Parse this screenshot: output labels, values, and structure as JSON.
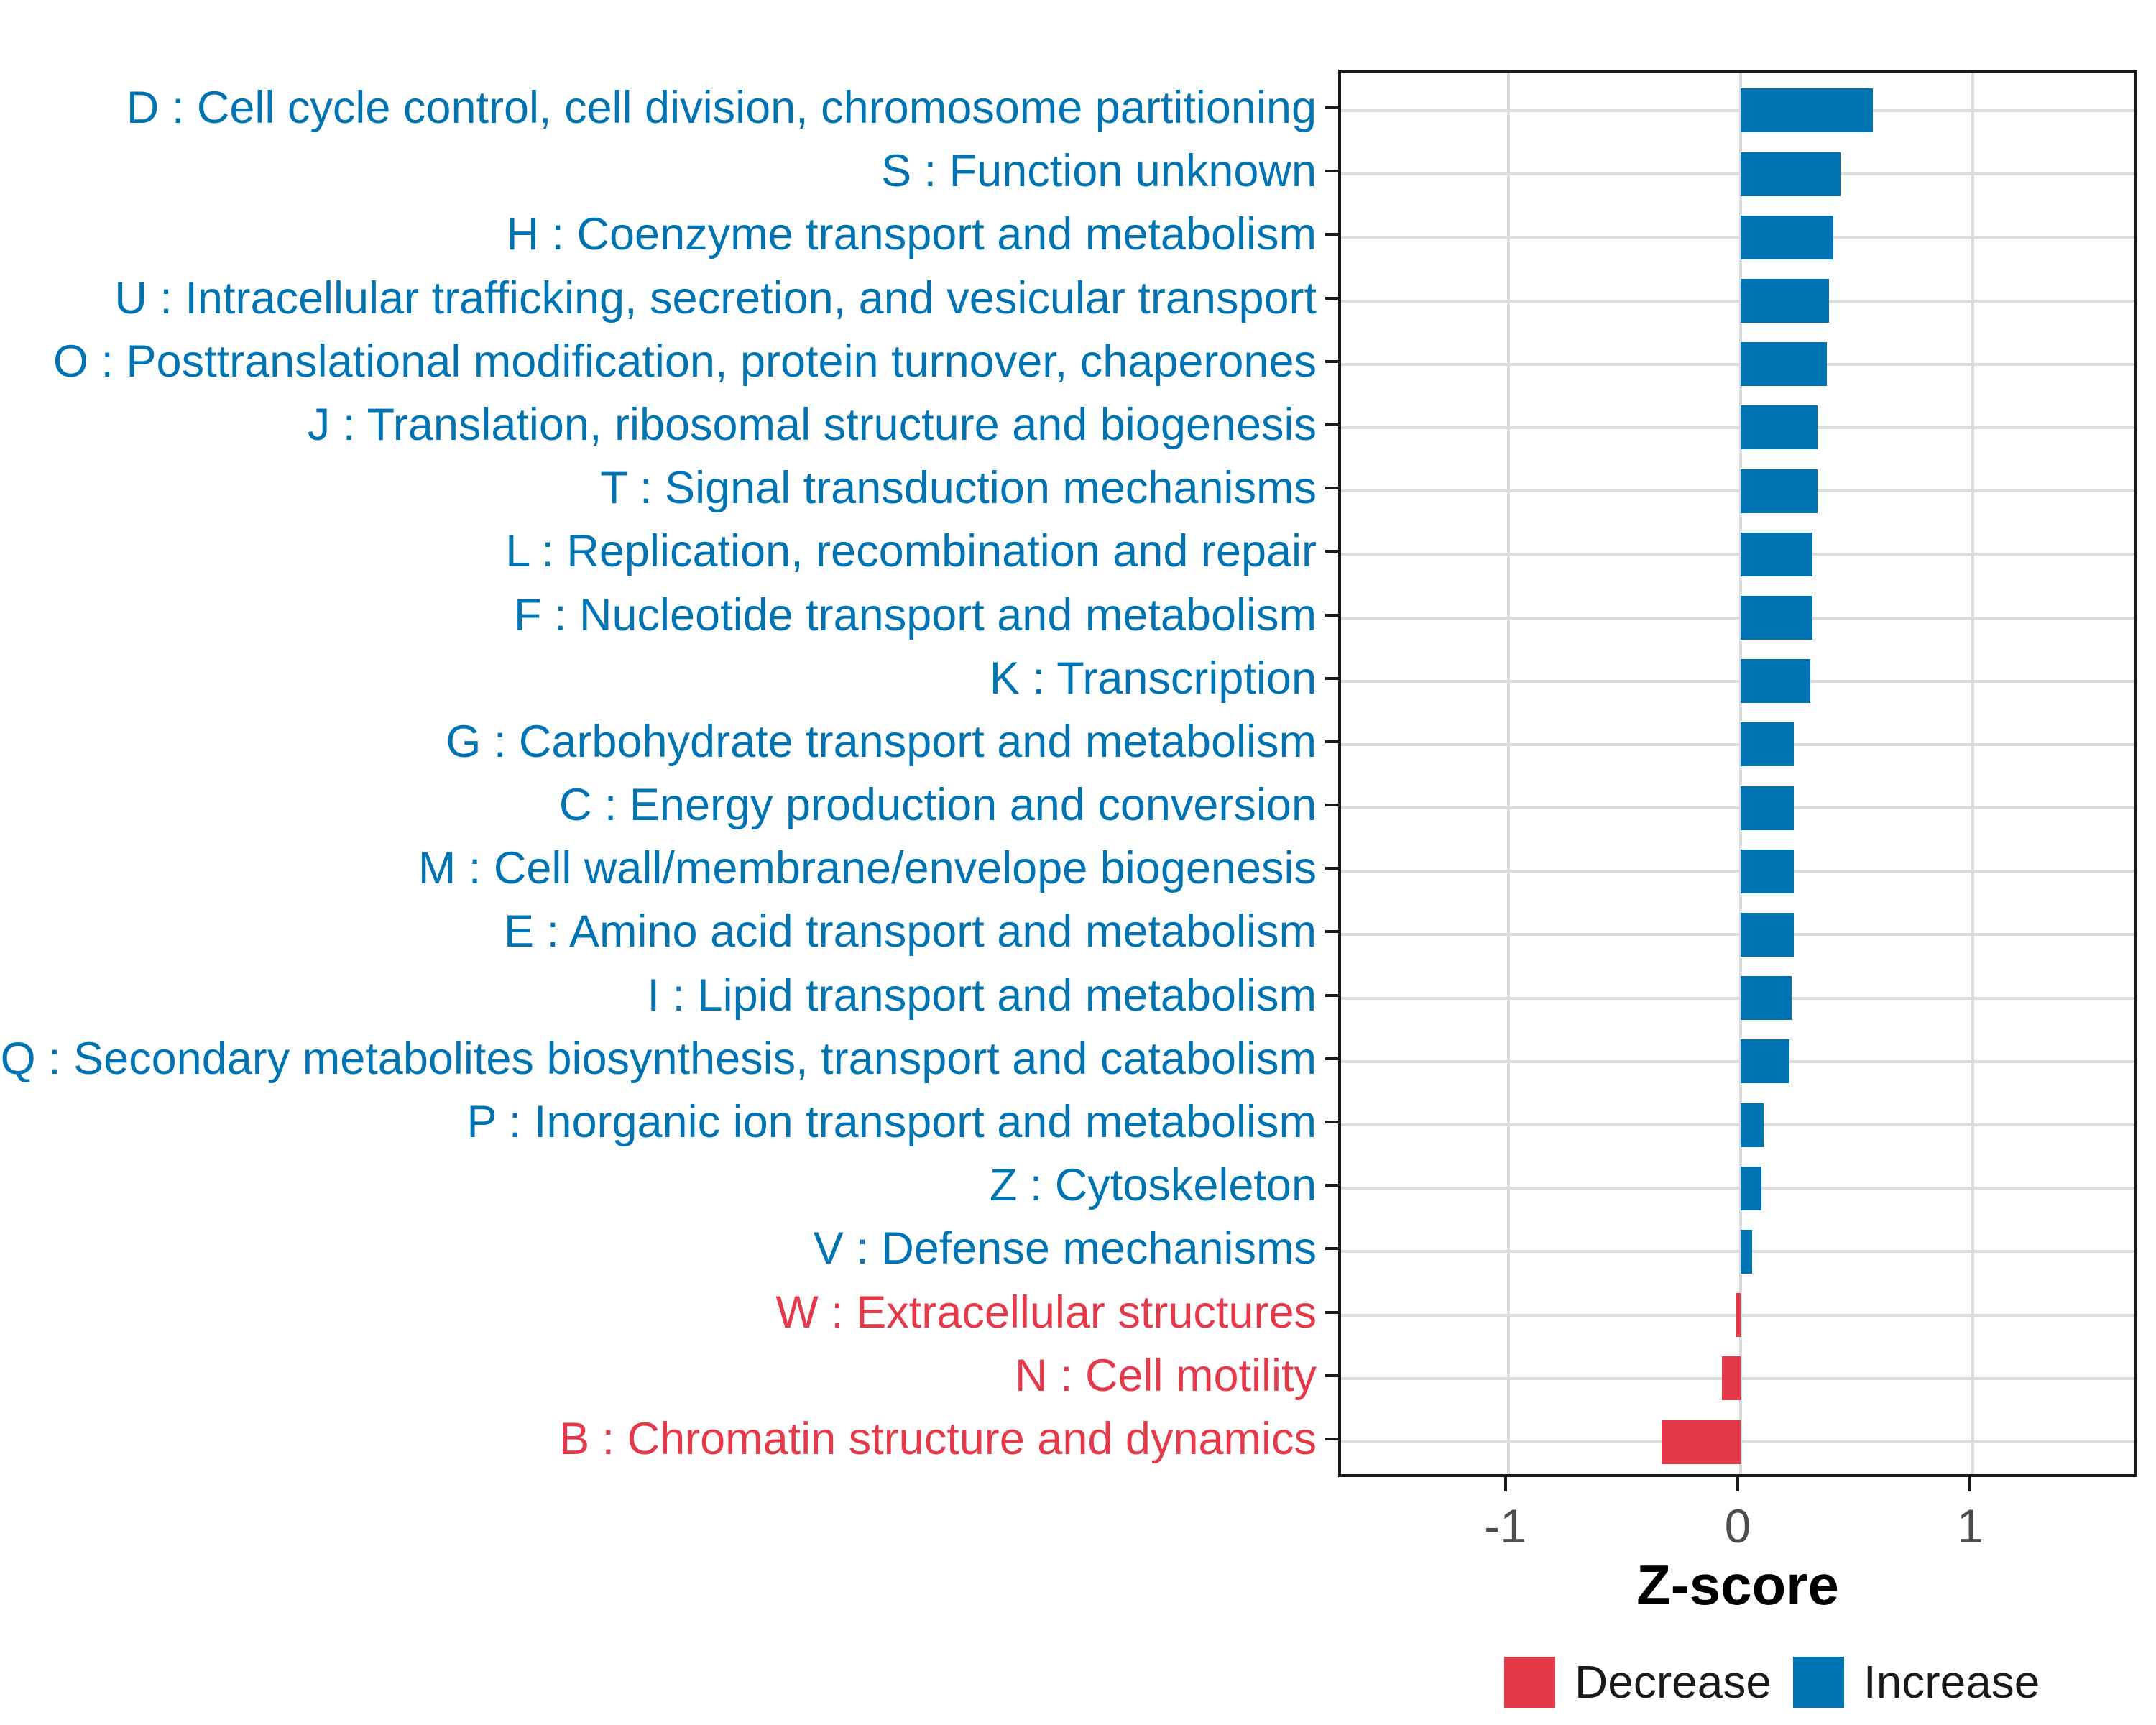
{
  "chart_data": {
    "type": "bar",
    "orientation": "horizontal",
    "xlabel": "Z-score",
    "x_ticks": [
      -1,
      0,
      1
    ],
    "x_tick_labels": [
      "-1",
      "0",
      "1"
    ],
    "xlim": [
      -1.72,
      1.72
    ],
    "grid": true,
    "legend_position": "bottom",
    "categories": [
      "D : Cell cycle control, cell division, chromosome partitioning",
      "S : Function unknown",
      "H : Coenzyme transport and metabolism",
      "U : Intracellular trafficking, secretion, and vesicular transport",
      "O : Posttranslational modification, protein turnover, chaperones",
      "J : Translation, ribosomal structure and biogenesis",
      "T : Signal transduction mechanisms",
      "L : Replication, recombination and repair",
      "F : Nucleotide transport and metabolism",
      "K : Transcription",
      "G : Carbohydrate transport and metabolism",
      "C : Energy production and conversion",
      "M : Cell wall/membrane/envelope biogenesis",
      "E : Amino acid transport and metabolism",
      "I : Lipid transport and metabolism",
      "Q : Secondary metabolites biosynthesis, transport and catabolism",
      "P : Inorganic ion transport and metabolism",
      "Z : Cytoskeleton",
      "V : Defense mechanisms",
      "W : Extracellular structures",
      "N : Cell motility",
      "B : Chromatin structure and dynamics"
    ],
    "values": [
      0.57,
      0.43,
      0.4,
      0.38,
      0.37,
      0.33,
      0.33,
      0.31,
      0.31,
      0.3,
      0.23,
      0.23,
      0.23,
      0.23,
      0.22,
      0.21,
      0.1,
      0.09,
      0.05,
      -0.02,
      -0.08,
      -0.34
    ],
    "directions": [
      "Increase",
      "Increase",
      "Increase",
      "Increase",
      "Increase",
      "Increase",
      "Increase",
      "Increase",
      "Increase",
      "Increase",
      "Increase",
      "Increase",
      "Increase",
      "Increase",
      "Increase",
      "Increase",
      "Increase",
      "Increase",
      "Increase",
      "Decrease",
      "Decrease",
      "Decrease"
    ],
    "colors": {
      "increase": "#0074B3",
      "decrease": "#E5394A"
    },
    "legend": [
      {
        "label": "Decrease",
        "color": "#E5394A"
      },
      {
        "label": "Increase",
        "color": "#0074B3"
      }
    ]
  }
}
